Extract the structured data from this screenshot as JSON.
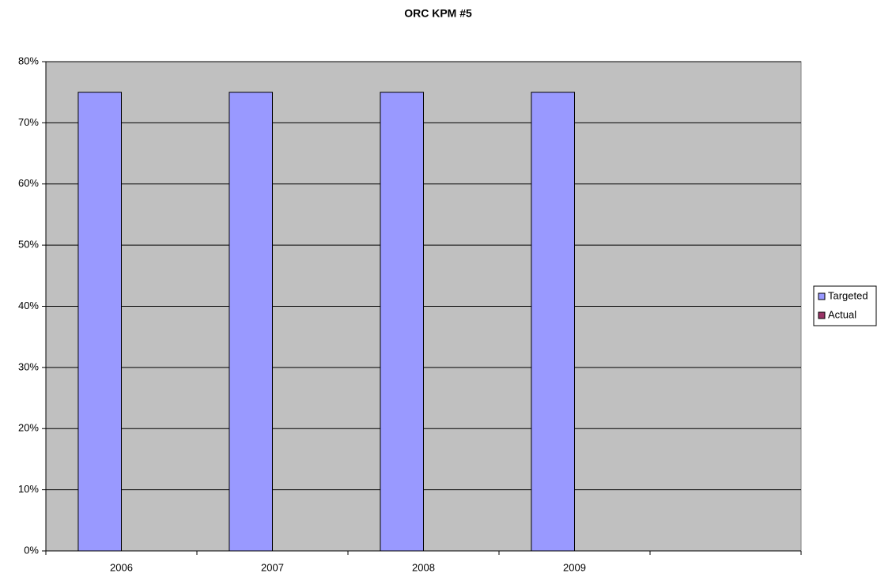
{
  "chart_data": {
    "type": "bar",
    "title": "ORC KPM #5",
    "categories": [
      "2006",
      "2007",
      "2008",
      "2009",
      null
    ],
    "series": [
      {
        "name": "Targeted",
        "color": "#9999ff",
        "values": [
          75,
          75,
          75,
          75,
          null
        ]
      },
      {
        "name": "Actual",
        "color": "#993366",
        "values": [
          null,
          null,
          null,
          null,
          null
        ]
      }
    ],
    "ylim": [
      0,
      80
    ],
    "yticks": [
      {
        "value": 0,
        "label": "0%"
      },
      {
        "value": 10,
        "label": "10%"
      },
      {
        "value": 20,
        "label": "20%"
      },
      {
        "value": 30,
        "label": "30%"
      },
      {
        "value": 40,
        "label": "40%"
      },
      {
        "value": 50,
        "label": "50%"
      },
      {
        "value": 60,
        "label": "60%"
      },
      {
        "value": 70,
        "label": "70%"
      },
      {
        "value": 80,
        "label": "80%"
      }
    ],
    "grid": true,
    "legend": "right",
    "plot_background": "#c0c0c0"
  }
}
